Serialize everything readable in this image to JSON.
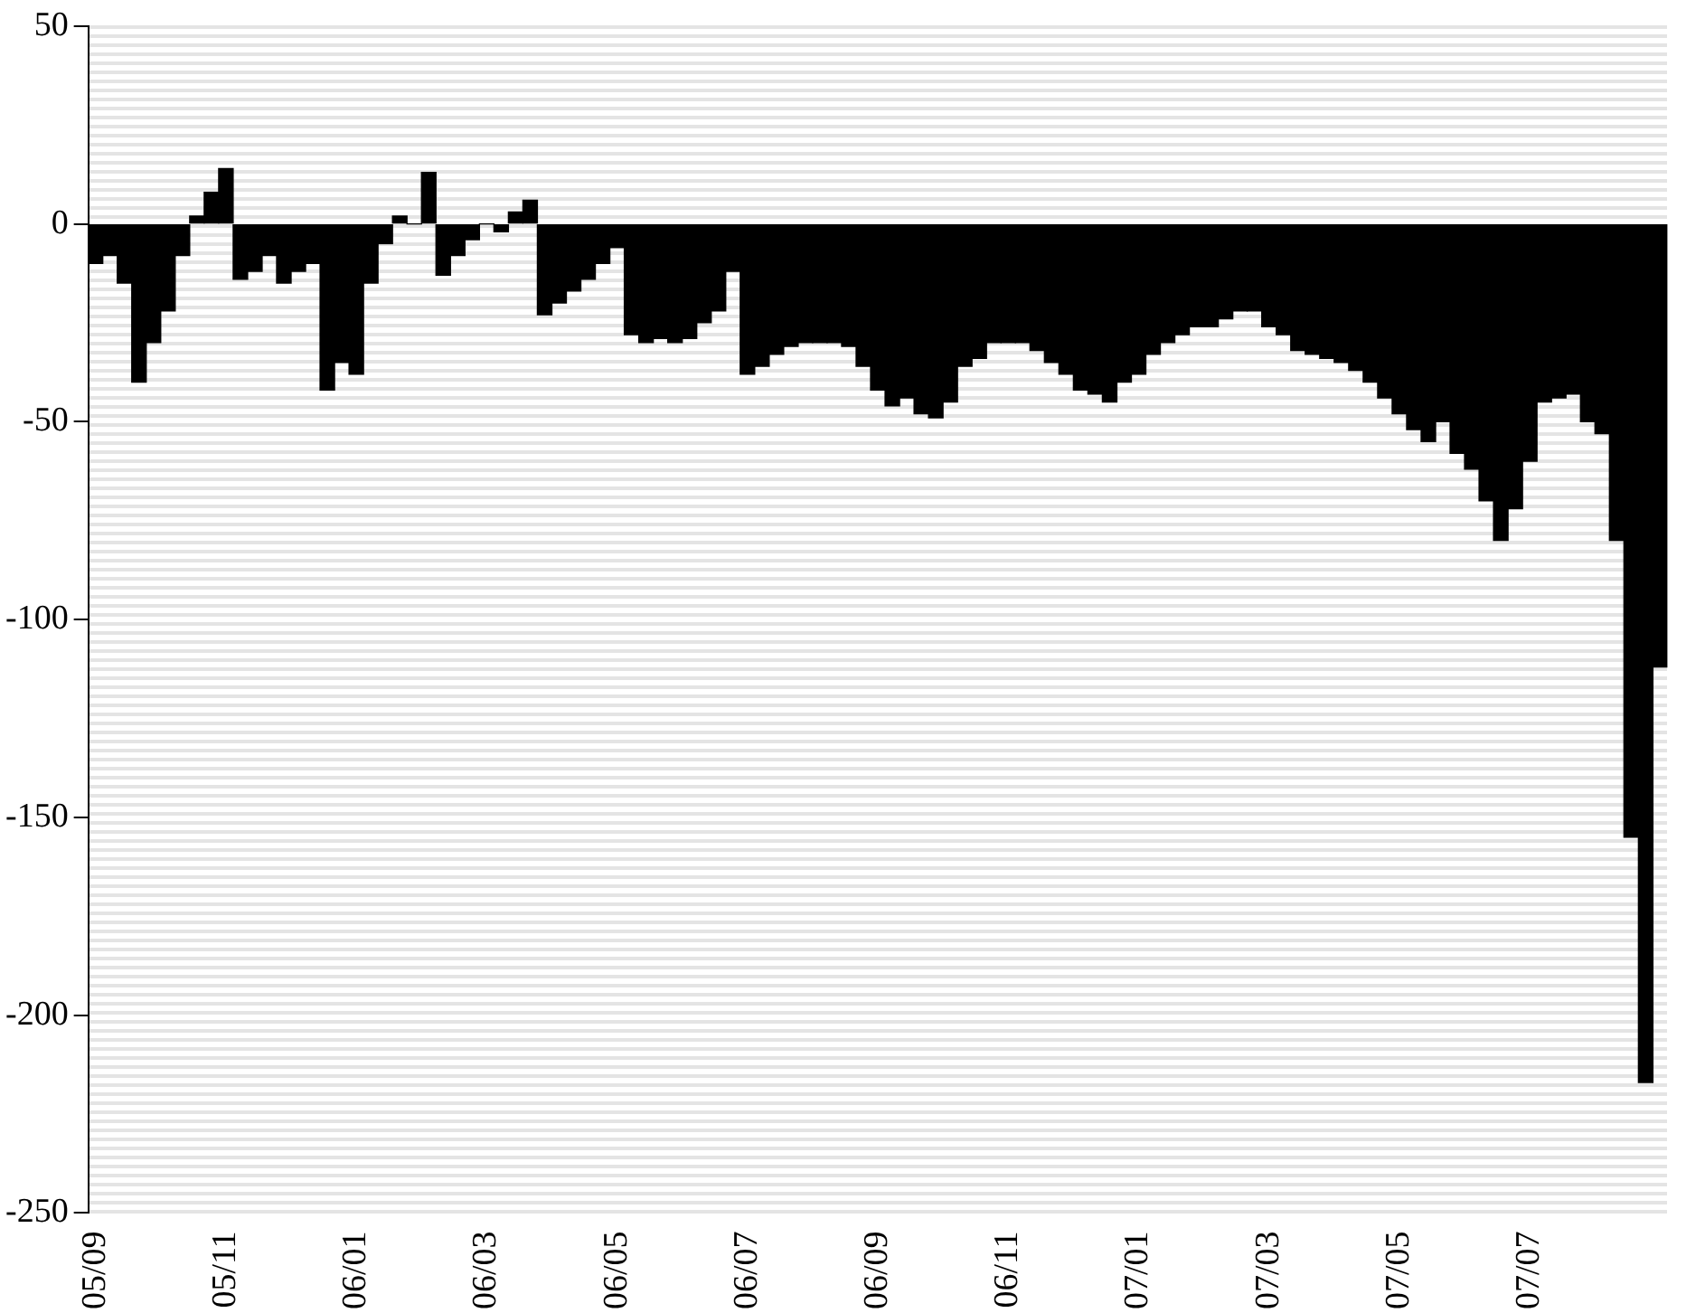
{
  "chart_data": {
    "type": "bar",
    "color": "#000000",
    "categories": [
      "05/09",
      null,
      null,
      null,
      null,
      null,
      null,
      null,
      null,
      "05/11",
      null,
      null,
      null,
      null,
      null,
      null,
      null,
      null,
      "06/01",
      null,
      null,
      null,
      null,
      null,
      null,
      null,
      null,
      "06/03",
      null,
      null,
      null,
      null,
      null,
      null,
      null,
      null,
      "06/05",
      null,
      null,
      null,
      null,
      null,
      null,
      null,
      null,
      "06/07",
      null,
      null,
      null,
      null,
      null,
      null,
      null,
      null,
      "06/09",
      null,
      null,
      null,
      null,
      null,
      null,
      null,
      null,
      "06/11",
      null,
      null,
      null,
      null,
      null,
      null,
      null,
      null,
      "07/01",
      null,
      null,
      null,
      null,
      null,
      null,
      null,
      null,
      "07/03",
      null,
      null,
      null,
      null,
      null,
      null,
      null,
      null,
      "07/05",
      null,
      null,
      null,
      null,
      null,
      null,
      null,
      null,
      "07/07",
      null,
      null,
      null,
      null,
      null,
      null,
      null,
      null,
      null
    ],
    "values": [
      -10,
      -8,
      -15,
      -40,
      -30,
      -22,
      -8,
      2,
      8,
      14,
      -14,
      -12,
      -8,
      -15,
      -12,
      -10,
      -42,
      -35,
      -38,
      -15,
      -5,
      2,
      0,
      13,
      -13,
      -8,
      -4,
      0,
      -2,
      3,
      6,
      -23,
      -20,
      -17,
      -14,
      -10,
      -6,
      -28,
      -30,
      -29,
      -30,
      -29,
      -25,
      -22,
      -12,
      -38,
      -36,
      -33,
      -31,
      -30,
      -30,
      -30,
      -31,
      -36,
      -42,
      -46,
      -44,
      -48,
      -49,
      -45,
      -36,
      -34,
      -30,
      -30,
      -30,
      -32,
      -35,
      -38,
      -42,
      -43,
      -45,
      -40,
      -38,
      -33,
      -30,
      -28,
      -26,
      -26,
      -24,
      -22,
      -22,
      -26,
      -28,
      -32,
      -33,
      -34,
      -35,
      -37,
      -40,
      -44,
      -48,
      -52,
      -55,
      -50,
      -58,
      -62,
      -70,
      -80,
      -72,
      -60,
      -45,
      -44,
      -43,
      -50,
      -53,
      -80,
      -155,
      -217,
      -112
    ],
    "ylim": [
      -250,
      50
    ],
    "yticks": [
      -250,
      -200,
      -150,
      -100,
      -50,
      0,
      50
    ],
    "grid": false
  }
}
